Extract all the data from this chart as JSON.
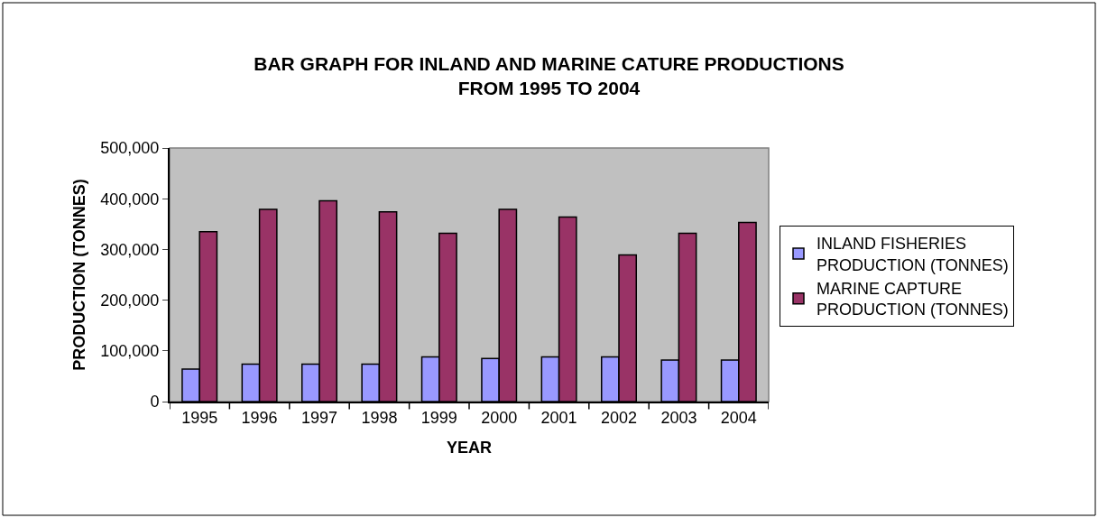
{
  "chart_data": {
    "type": "bar",
    "title": "BAR GRAPH FOR INLAND AND MARINE CATURE PRODUCTIONS FROM 1995 TO 2004",
    "xlabel": "YEAR",
    "ylabel": "PRODUCTION (TONNES)",
    "categories": [
      "1995",
      "1996",
      "1997",
      "1998",
      "1999",
      "2000",
      "2001",
      "2002",
      "2003",
      "2004"
    ],
    "series": [
      {
        "name": "INLAND FISHERIES PRODUCTION (TONNES)",
        "color": "#9999ff",
        "values": [
          64000,
          74000,
          74000,
          74000,
          88000,
          85000,
          88000,
          88000,
          82000,
          82000
        ]
      },
      {
        "name": "MARINE CAPTURE PRODUCTION (TONNES)",
        "color": "#993366",
        "values": [
          335000,
          379000,
          396000,
          374000,
          332000,
          379000,
          364000,
          289000,
          332000,
          353000
        ]
      }
    ],
    "ylim": [
      0,
      500000
    ],
    "yticks": [
      0,
      {
        "value": 100000,
        "label": "100,000"
      },
      {
        "value": 200000,
        "label": "200,000"
      },
      {
        "value": 300000,
        "label": "300,000"
      },
      {
        "value": 400000,
        "label": "400,000"
      },
      {
        "value": 500000,
        "label": "500,000"
      }
    ],
    "grid": false,
    "legend": "right"
  }
}
